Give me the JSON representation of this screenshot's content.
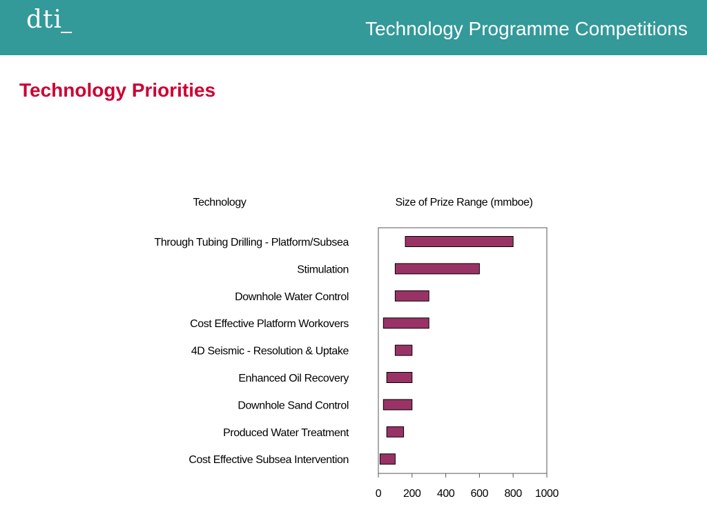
{
  "header": {
    "logo_text": "dti",
    "title": "Technology Programme Competitions"
  },
  "slide": {
    "title": "Technology Priorities"
  },
  "colors": {
    "header_bg": "#339999",
    "title_color": "#cc0033",
    "bar_fill": "#993366"
  },
  "chart_data": {
    "type": "bar",
    "orientation": "horizontal",
    "variant": "range",
    "category_header": "Technology",
    "value_header": "Size of Prize Range (mmboe)",
    "categories": [
      "Through Tubing Drilling - Platform/Subsea",
      "Stimulation",
      "Downhole Water Control",
      "Cost Effective Platform Workovers",
      "4D Seismic - Resolution & Uptake",
      "Enhanced Oil Recovery",
      "Downhole Sand Control",
      "Produced Water Treatment",
      "Cost Effective Subsea Intervention"
    ],
    "ranges": [
      [
        160,
        800
      ],
      [
        100,
        600
      ],
      [
        100,
        300
      ],
      [
        30,
        300
      ],
      [
        100,
        200
      ],
      [
        50,
        200
      ],
      [
        30,
        200
      ],
      [
        50,
        150
      ],
      [
        10,
        100
      ]
    ],
    "xlim": [
      0,
      1000
    ],
    "xticks": [
      "0",
      "200",
      "400",
      "600",
      "800",
      "1000"
    ],
    "grid": false,
    "legend": "none"
  }
}
